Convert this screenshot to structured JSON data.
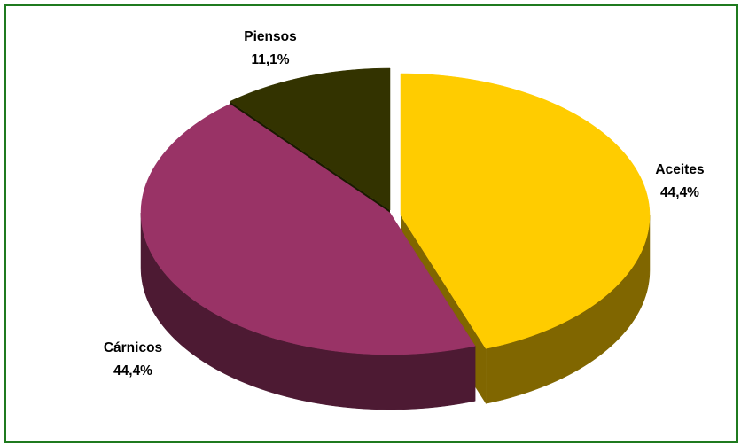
{
  "chart_data": {
    "type": "pie",
    "title": "",
    "legend": "none",
    "slices": [
      {
        "label": "Aceites",
        "value": 44.4,
        "value_label": "44,4%",
        "color": "#FFCC00",
        "side_color": "#806600"
      },
      {
        "label": "Cárnicos",
        "value": 44.4,
        "value_label": "44,4%",
        "color": "#993366",
        "side_color": "#4D1A33"
      },
      {
        "label": "Piensos",
        "value": 11.1,
        "value_label": "11,1%",
        "color": "#333300",
        "side_color": "#1A1A00"
      }
    ]
  }
}
